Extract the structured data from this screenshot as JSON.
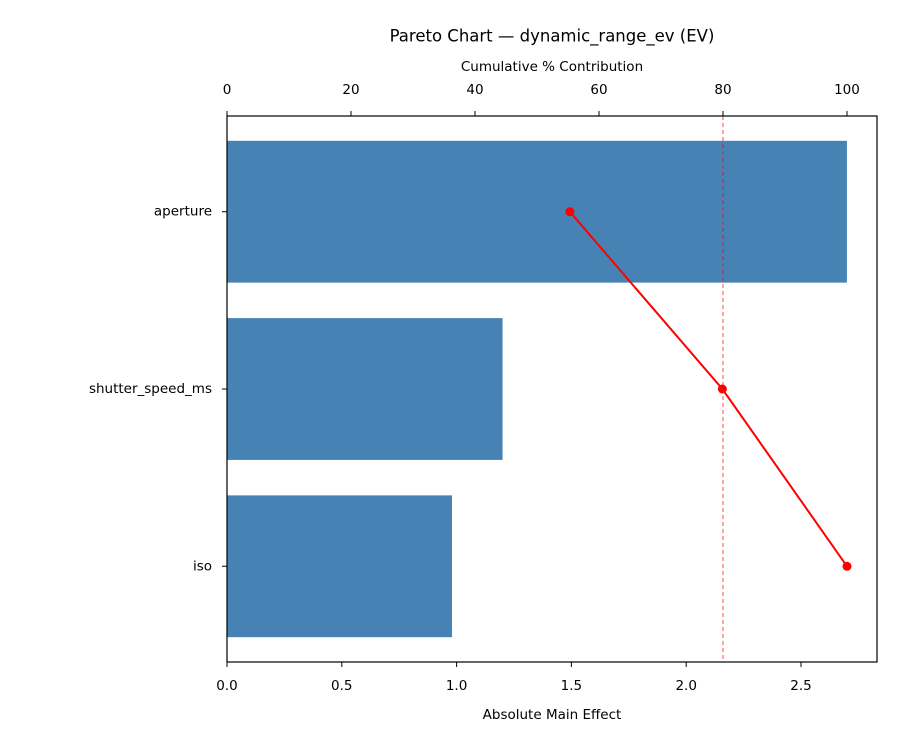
{
  "chart_data": {
    "type": "pareto",
    "title": "Pareto Chart — dynamic_range_ev (EV)",
    "xlabel": "Absolute Main Effect",
    "x2label": "Cumulative % Contribution",
    "categories": [
      "aperture",
      "shutter_speed_ms",
      "iso"
    ],
    "series": [
      {
        "name": "Absolute Main Effect",
        "color": "#4682b4",
        "values": [
          2.7,
          1.2,
          0.98
        ]
      },
      {
        "name": "Cumulative %",
        "color": "#ff0000",
        "axis": "x2",
        "values": [
          55.3,
          79.9,
          100
        ]
      }
    ],
    "xlim": [
      0,
      2.831
    ],
    "xticks": [
      {
        "value": 0,
        "label": "0.0"
      },
      0.5,
      {
        "value": 1,
        "label": "1.0"
      },
      1.5,
      {
        "value": 2,
        "label": "2.0"
      },
      2.5
    ],
    "x2lim": [
      0,
      104.84
    ],
    "x2ticks": [
      0,
      20,
      40,
      60,
      80,
      100
    ],
    "reference_line": {
      "axis": "x2",
      "value": 80,
      "color": "#ff0000"
    }
  }
}
